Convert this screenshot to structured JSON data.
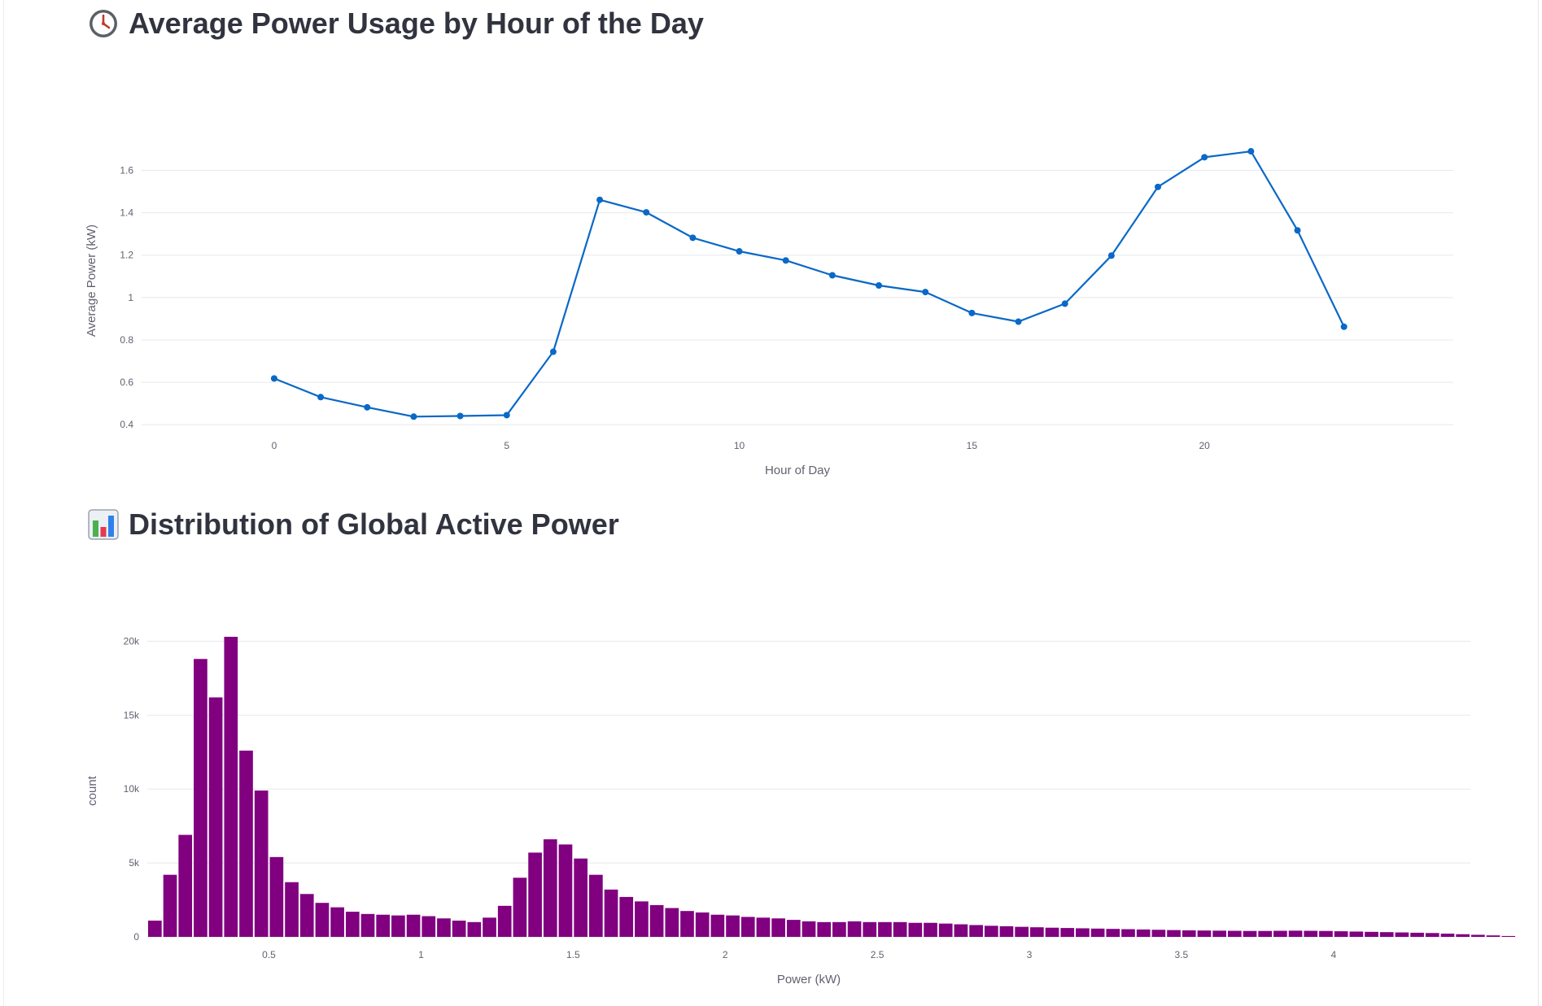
{
  "sections": [
    {
      "icon": "clock-icon",
      "title": "Average Power Usage by Hour of the Day"
    },
    {
      "icon": "bar-chart-icon",
      "title": "Distribution of Global Active Power"
    }
  ],
  "colors": {
    "line": "#0a68c7",
    "bars": "#800080",
    "grid": "#e6e8ee",
    "text": "#31333f",
    "tick": "#606270"
  },
  "chart_data": [
    {
      "type": "line",
      "title": "Average Power Usage by Hour of the Day",
      "xlabel": "Hour of Day",
      "ylabel": "Average Power (kW)",
      "x": [
        0,
        1,
        2,
        3,
        4,
        5,
        6,
        7,
        8,
        9,
        10,
        11,
        12,
        13,
        14,
        15,
        16,
        17,
        18,
        19,
        20,
        21,
        22,
        23
      ],
      "y": [
        0.618,
        0.53,
        0.482,
        0.438,
        0.441,
        0.445,
        0.744,
        1.461,
        1.402,
        1.282,
        1.218,
        1.175,
        1.105,
        1.057,
        1.026,
        0.927,
        0.886,
        0.971,
        1.198,
        1.522,
        1.662,
        1.69,
        1.317,
        0.862
      ],
      "xlim": [
        -2.85,
        25.35
      ],
      "ylim": [
        0.37,
        1.79
      ],
      "xticks": [
        0,
        5,
        10,
        15,
        20
      ],
      "xtick_labels": [
        "0",
        "5",
        "10",
        "15",
        "20"
      ],
      "yticks": [
        0.4,
        0.6,
        0.8,
        1.0,
        1.2,
        1.4,
        1.6
      ],
      "ytick_labels": [
        "0.4",
        "0.6",
        "0.8",
        "1",
        "1.2",
        "1.4",
        "1.6"
      ],
      "grid": true,
      "markers": true
    },
    {
      "type": "bar",
      "title": "Distribution of Global Active Power",
      "xlabel": "Power (kW)",
      "ylabel": "count",
      "bin_start": 0.1,
      "bin_width": 0.05,
      "values": [
        1100,
        4200,
        6900,
        18800,
        16200,
        20300,
        12600,
        9900,
        5400,
        3700,
        2900,
        2300,
        2000,
        1700,
        1550,
        1500,
        1450,
        1500,
        1400,
        1250,
        1100,
        1000,
        1300,
        2100,
        4000,
        5700,
        6600,
        6250,
        5300,
        4200,
        3200,
        2700,
        2400,
        2150,
        1950,
        1750,
        1650,
        1500,
        1450,
        1350,
        1300,
        1250,
        1150,
        1050,
        1000,
        1000,
        1050,
        1000,
        1000,
        1000,
        950,
        950,
        900,
        850,
        800,
        750,
        720,
        680,
        650,
        620,
        600,
        580,
        560,
        540,
        520,
        500,
        480,
        460,
        440,
        430,
        420,
        410,
        400,
        400,
        410,
        420,
        410,
        400,
        380,
        360,
        340,
        320,
        300,
        280,
        260,
        220,
        180,
        140,
        100,
        60
      ],
      "xlim": [
        0.1,
        4.45
      ],
      "ylim": [
        0,
        20300
      ],
      "xticks": [
        0.5,
        1,
        1.5,
        2,
        2.5,
        3,
        3.5,
        4
      ],
      "xtick_labels": [
        "0.5",
        "1",
        "1.5",
        "2",
        "2.5",
        "3",
        "3.5",
        "4"
      ],
      "yticks": [
        0,
        5000,
        10000,
        15000,
        20000
      ],
      "ytick_labels": [
        "0",
        "5k",
        "10k",
        "15k",
        "20k"
      ],
      "grid": true
    }
  ]
}
